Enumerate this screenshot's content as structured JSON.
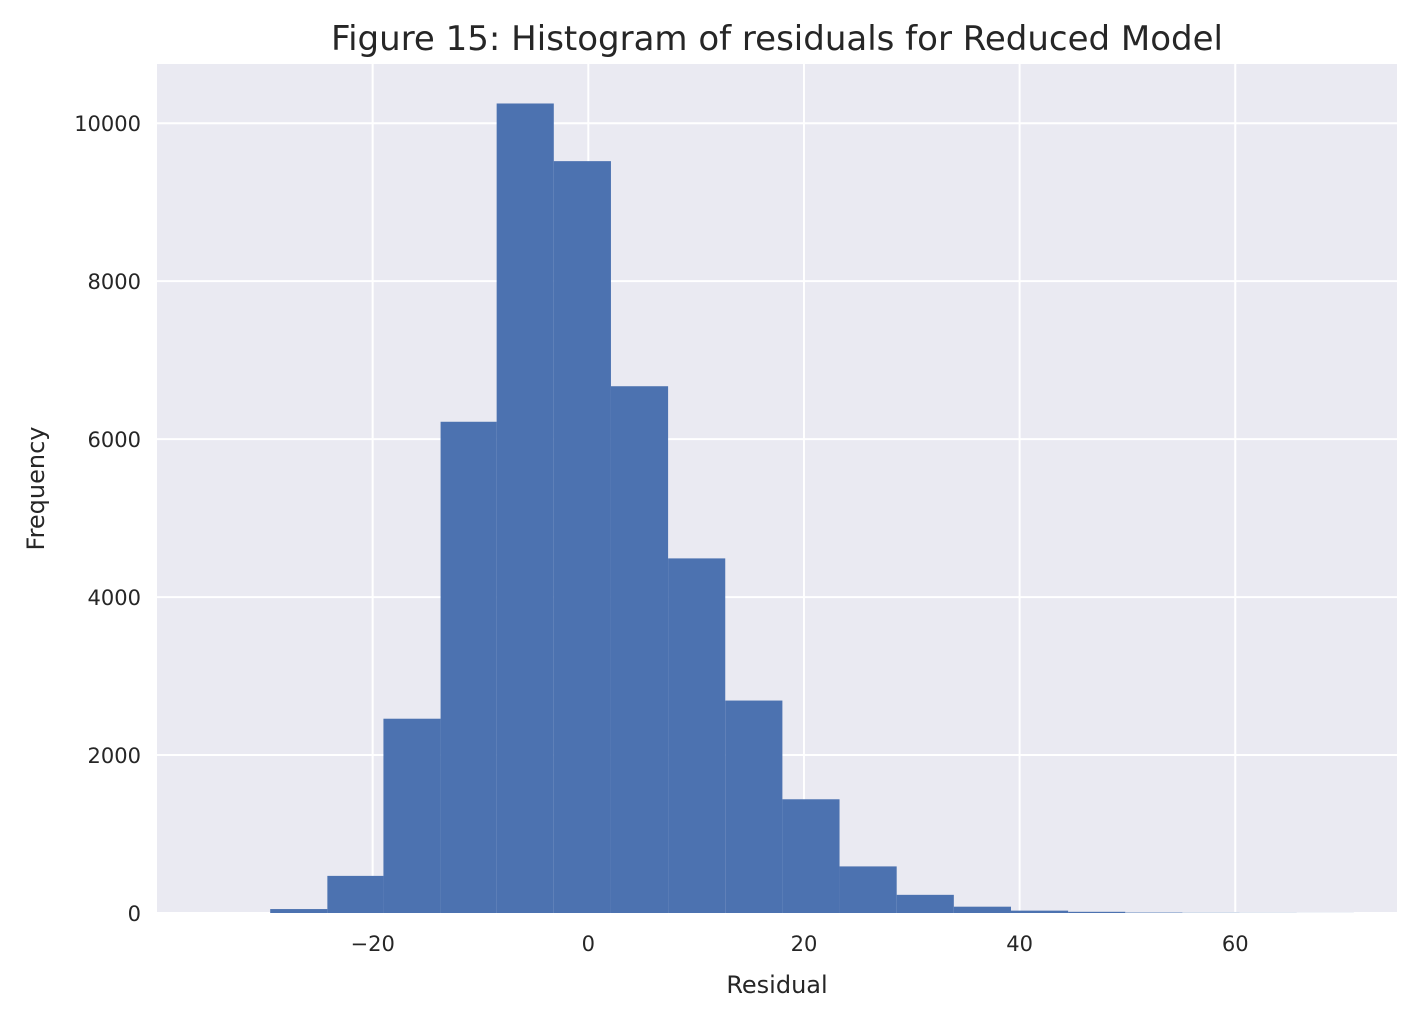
{
  "chart_data": {
    "type": "bar",
    "title": "Figure 15: Histogram of residuals for Reduced Model",
    "xlabel": "Residual",
    "ylabel": "Frequency",
    "xlim": [
      -40,
      75
    ],
    "ylim": [
      0,
      10750
    ],
    "x_ticks": [
      -20,
      0,
      20,
      40,
      60
    ],
    "x_tick_labels": [
      "−20",
      "0",
      "20",
      "40",
      "60"
    ],
    "y_ticks": [
      0,
      2000,
      4000,
      6000,
      8000,
      10000
    ],
    "y_tick_labels": [
      "0",
      "2000",
      "4000",
      "6000",
      "8000",
      "10000"
    ],
    "grid": true,
    "bar_color": "#4c72b0",
    "plot_background": "#eaeaf2",
    "bins": [
      {
        "x0": -29.5,
        "x1": -24.2,
        "value": 50
      },
      {
        "x0": -24.2,
        "x1": -19.0,
        "value": 470
      },
      {
        "x0": -19.0,
        "x1": -13.7,
        "value": 2460
      },
      {
        "x0": -13.7,
        "x1": -8.5,
        "value": 6220
      },
      {
        "x0": -8.5,
        "x1": -3.2,
        "value": 10250
      },
      {
        "x0": -3.2,
        "x1": 2.1,
        "value": 9520
      },
      {
        "x0": 2.1,
        "x1": 7.4,
        "value": 6670
      },
      {
        "x0": 7.4,
        "x1": 12.7,
        "value": 4490
      },
      {
        "x0": 12.7,
        "x1": 18.0,
        "value": 2690
      },
      {
        "x0": 18.0,
        "x1": 23.3,
        "value": 1440
      },
      {
        "x0": 23.3,
        "x1": 28.6,
        "value": 590
      },
      {
        "x0": 28.6,
        "x1": 33.9,
        "value": 230
      },
      {
        "x0": 33.9,
        "x1": 39.2,
        "value": 80
      },
      {
        "x0": 39.2,
        "x1": 44.5,
        "value": 30
      },
      {
        "x0": 44.5,
        "x1": 49.8,
        "value": 15
      },
      {
        "x0": 49.8,
        "x1": 55.1,
        "value": 6
      },
      {
        "x0": 55.1,
        "x1": 60.4,
        "value": 3
      },
      {
        "x0": 60.4,
        "x1": 65.7,
        "value": 2
      },
      {
        "x0": 65.7,
        "x1": 71.0,
        "value": 1
      }
    ]
  }
}
